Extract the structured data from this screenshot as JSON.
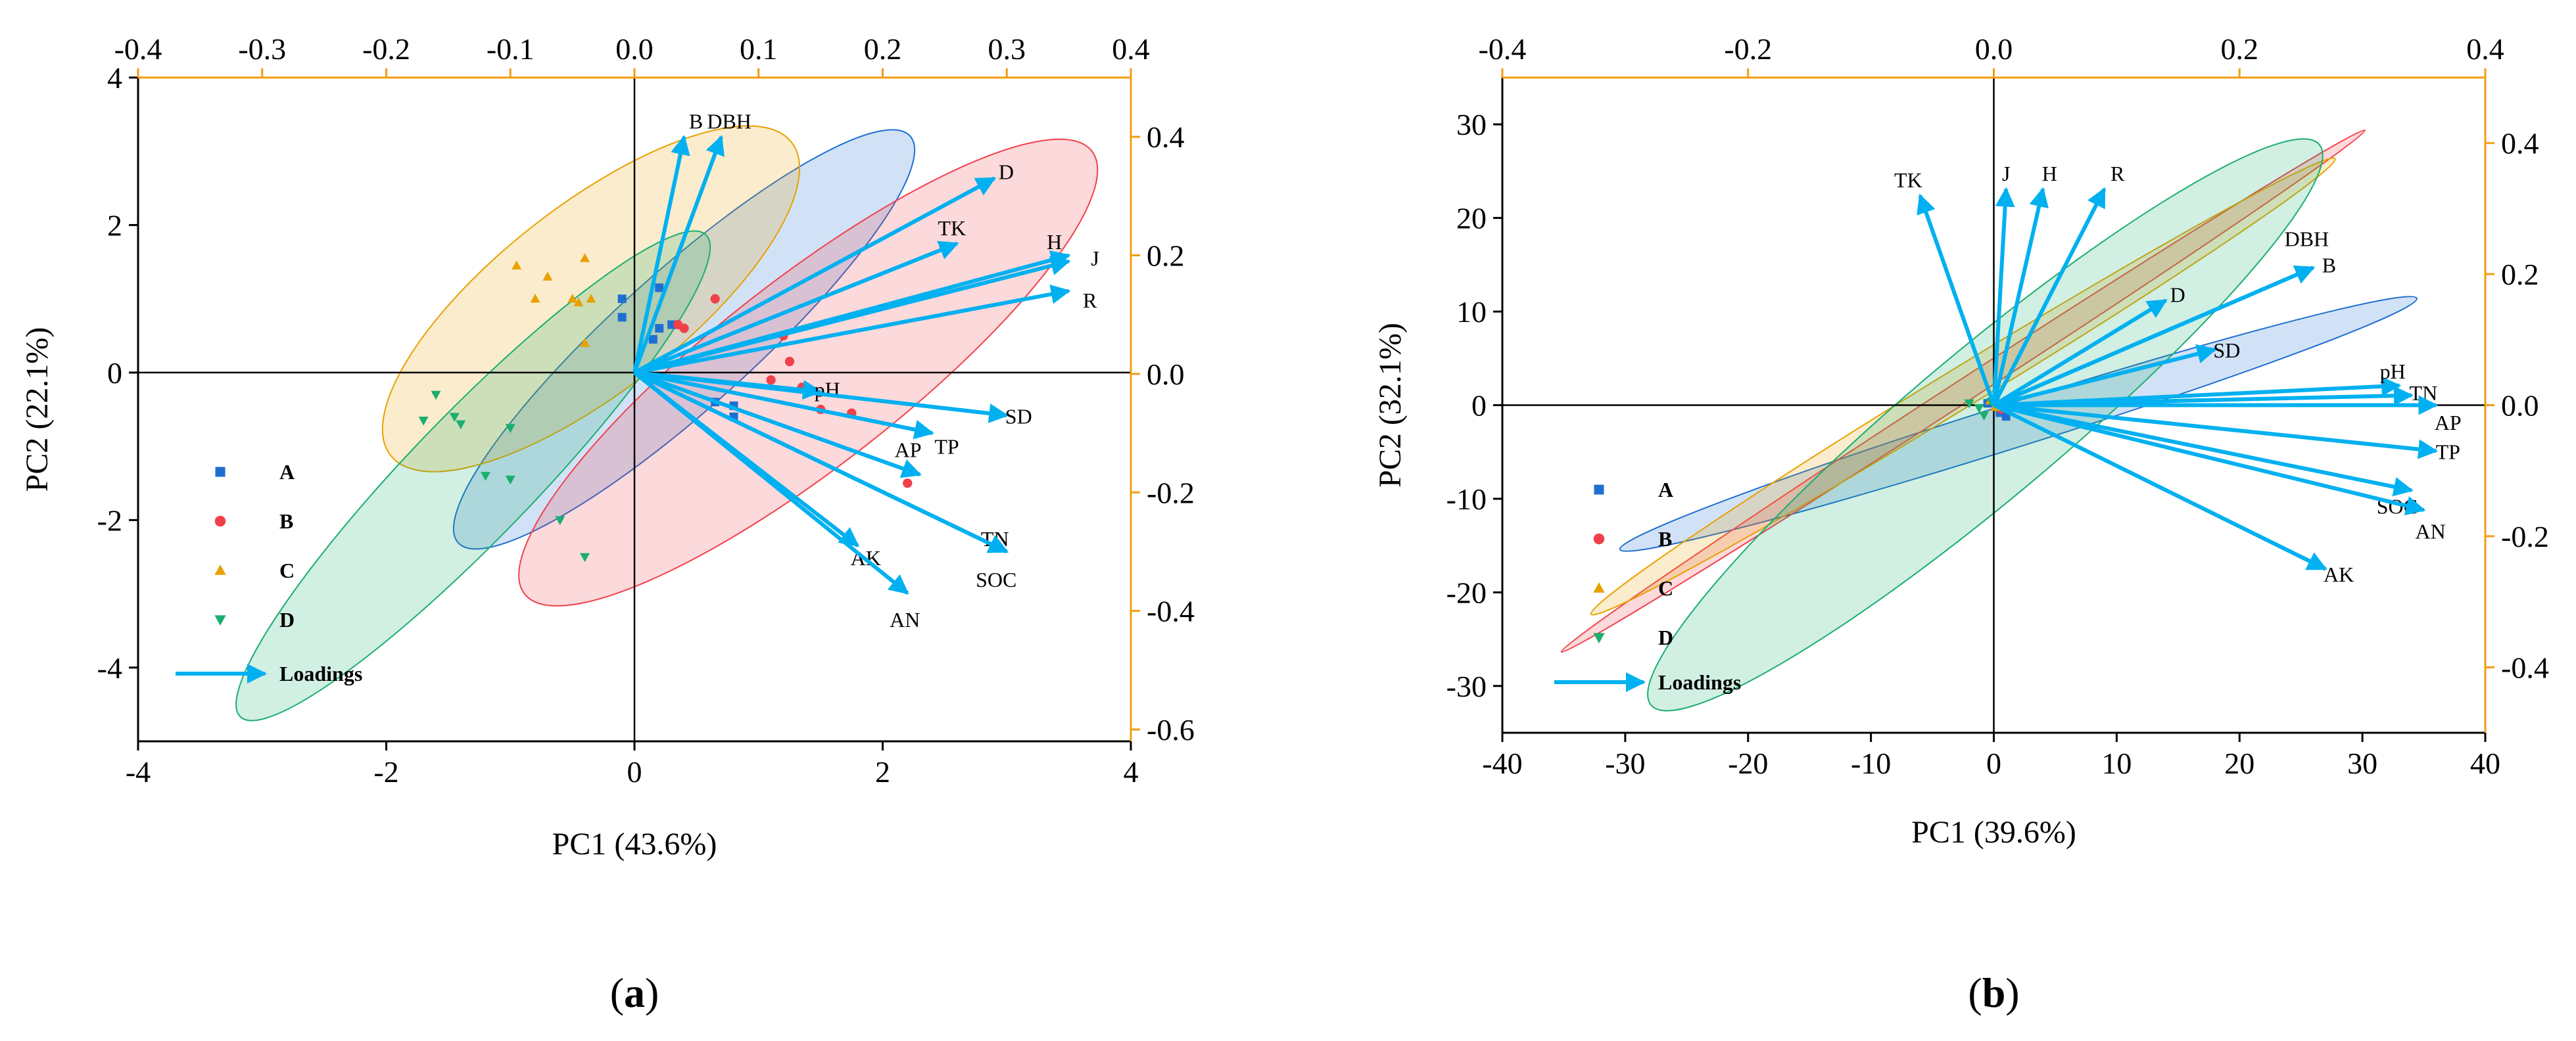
{
  "arrow_color": "#00B0F0",
  "orange_color": "#F39C12",
  "chart_data": [
    {
      "type": "scatter",
      "panel_label": "(a)",
      "title": "",
      "xlabel": "PC1 (43.6%)",
      "ylabel": "PC2 (22.1%)",
      "xlim": [
        -4,
        4
      ],
      "ylim": [
        -5,
        4
      ],
      "xticks": [
        -4,
        -2,
        0,
        2,
        4
      ],
      "yticks": [
        -4,
        -2,
        0,
        2,
        4
      ],
      "loading_xlim": [
        -0.4,
        0.4
      ],
      "loading_ylim": [
        -0.62,
        0.5
      ],
      "top_ticks": [
        -0.4,
        -0.3,
        -0.2,
        -0.1,
        0.0,
        0.1,
        0.2,
        0.3,
        0.4
      ],
      "right_ticks": [
        0.4,
        0.2,
        0.0,
        -0.2,
        -0.4,
        -0.6
      ],
      "top_tick_labels": [
        "-0.4",
        "-0.3",
        "-0.2",
        "-0.1",
        "0.0",
        "0.1",
        "0.2",
        "0.3",
        "0.4"
      ],
      "right_tick_labels": [
        "0.4",
        "0.2",
        "0.0",
        "-0.2",
        "-0.4",
        "-0.6"
      ],
      "legend": [
        "A",
        "B",
        "C",
        "D",
        "Loadings"
      ],
      "series": [
        {
          "name": "A",
          "color": "#1F6FD1",
          "marker": "square",
          "points": [
            [
              -0.1,
              1.0
            ],
            [
              -0.1,
              0.75
            ],
            [
              0.2,
              1.15
            ],
            [
              0.2,
              0.6
            ],
            [
              0.15,
              0.45
            ],
            [
              0.3,
              0.65
            ],
            [
              0.65,
              -0.4
            ],
            [
              0.8,
              -0.45
            ],
            [
              0.8,
              -0.6
            ]
          ],
          "ellipse": {
            "cx": 0.4,
            "cy": 0.45,
            "rx": 2.45,
            "ry": 0.55,
            "angle": -42
          }
        },
        {
          "name": "B",
          "color": "#F0414B",
          "marker": "circle",
          "points": [
            [
              0.65,
              1.0
            ],
            [
              0.35,
              0.65
            ],
            [
              0.4,
              0.6
            ],
            [
              1.1,
              -0.1
            ],
            [
              1.2,
              0.5
            ],
            [
              1.25,
              0.15
            ],
            [
              1.35,
              -0.2
            ],
            [
              1.5,
              -0.5
            ],
            [
              1.75,
              -0.55
            ],
            [
              2.2,
              -1.5
            ]
          ],
          "ellipse": {
            "cx": 1.4,
            "cy": 0.0,
            "rx": 2.9,
            "ry": 0.75,
            "angle": -38
          }
        },
        {
          "name": "C",
          "color": "#E8A100",
          "marker": "triangle-up",
          "points": [
            [
              -0.95,
              1.45
            ],
            [
              -0.7,
              1.3
            ],
            [
              -0.4,
              1.55
            ],
            [
              -0.8,
              1.0
            ],
            [
              -0.5,
              1.0
            ],
            [
              -0.35,
              1.0
            ],
            [
              -0.45,
              0.95
            ],
            [
              -0.4,
              0.4
            ]
          ],
          "ellipse": {
            "cx": -0.35,
            "cy": 1.0,
            "rx": 2.05,
            "ry": 0.75,
            "angle": -38
          }
        },
        {
          "name": "D",
          "color": "#1AAE6F",
          "marker": "triangle-down",
          "points": [
            [
              -1.6,
              -0.3
            ],
            [
              -1.7,
              -0.65
            ],
            [
              -1.45,
              -0.6
            ],
            [
              -1.4,
              -0.7
            ],
            [
              -1.0,
              -0.75
            ],
            [
              -1.2,
              -1.4
            ],
            [
              -1.0,
              -1.45
            ],
            [
              -0.6,
              -2.0
            ],
            [
              -0.4,
              -2.5
            ]
          ],
          "ellipse": {
            "cx": -1.3,
            "cy": -1.4,
            "rx": 2.7,
            "ry": 0.5,
            "angle": -46
          }
        }
      ],
      "loadings": [
        {
          "name": "B",
          "x": 0.04,
          "y": 0.4
        },
        {
          "name": "DBH",
          "x": 0.07,
          "y": 0.4
        },
        {
          "name": "D",
          "x": 0.29,
          "y": 0.33
        },
        {
          "name": "TK",
          "x": 0.26,
          "y": 0.22
        },
        {
          "name": "H",
          "x": 0.35,
          "y": 0.19
        },
        {
          "name": "J",
          "x": 0.35,
          "y": 0.2
        },
        {
          "name": "R",
          "x": 0.35,
          "y": 0.14
        },
        {
          "name": "pH",
          "x": 0.15,
          "y": -0.03
        },
        {
          "name": "SD",
          "x": 0.3,
          "y": -0.07
        },
        {
          "name": "TP",
          "x": 0.24,
          "y": -0.1
        },
        {
          "name": "AP",
          "x": 0.23,
          "y": -0.17
        },
        {
          "name": "TN",
          "x": 0.3,
          "y": -0.3
        },
        {
          "name": "SOC",
          "x": 0.3,
          "y": -0.3
        },
        {
          "name": "AK",
          "x": 0.18,
          "y": -0.29
        },
        {
          "name": "AN",
          "x": 0.22,
          "y": -0.37
        }
      ]
    },
    {
      "type": "scatter",
      "panel_label": "(b)",
      "title": "",
      "xlabel": "PC1 (39.6%)",
      "ylabel": "PC2 (32.1%)",
      "xlim": [
        -40,
        40
      ],
      "ylim": [
        -35,
        35
      ],
      "xticks": [
        -40,
        -30,
        -20,
        -10,
        0,
        10,
        20,
        30,
        40
      ],
      "yticks": [
        -30,
        -20,
        -10,
        0,
        10,
        20,
        30
      ],
      "loading_xlim": [
        -0.4,
        0.4
      ],
      "loading_ylim": [
        -0.5,
        0.5
      ],
      "top_ticks": [
        -0.4,
        -0.2,
        0.0,
        0.2,
        0.4
      ],
      "right_ticks": [
        0.4,
        0.2,
        0.0,
        -0.2,
        -0.4
      ],
      "top_tick_labels": [
        "-0.4",
        "-0.2",
        "0.0",
        "0.2",
        "0.4"
      ],
      "right_tick_labels": [
        "0.4",
        "0.2",
        "0.0",
        "-0.2",
        "-0.4"
      ],
      "legend": [
        "A",
        "B",
        "C",
        "D",
        "Loadings"
      ],
      "series": [
        {
          "name": "A",
          "color": "#1F6FD1",
          "marker": "square",
          "points": [
            [
              -0.5,
              0.2
            ],
            [
              0.5,
              -0.8
            ],
            [
              1.0,
              -1.2
            ]
          ],
          "ellipse": {
            "cx": 2.0,
            "cy": -2.0,
            "rx": 34,
            "ry": 1.8,
            "angle": -17.5
          }
        },
        {
          "name": "B",
          "color": "#F0414B",
          "marker": "circle",
          "points": [
            [
              0.2,
              0.3
            ],
            [
              0.6,
              -0.4
            ]
          ],
          "ellipse": {
            "cx": -2.5,
            "cy": 1.5,
            "rx": 39,
            "ry": 0.9,
            "angle": -33
          }
        },
        {
          "name": "C",
          "color": "#E8A100",
          "marker": "triangle-up",
          "points": [
            [
              -0.3,
              0.5
            ],
            [
              0.1,
              -0.2
            ]
          ],
          "ellipse": {
            "cx": -2.5,
            "cy": 2.0,
            "rx": 35.5,
            "ry": 1.6,
            "angle": -31.5
          }
        },
        {
          "name": "D",
          "color": "#1AAE6F",
          "marker": "triangle-down",
          "points": [
            [
              -2.0,
              0.2
            ],
            [
              -1.2,
              -0.3
            ],
            [
              -0.8,
              -1.1
            ],
            [
              -0.2,
              0.4
            ]
          ],
          "ellipse": {
            "cx": -0.7,
            "cy": -2.1,
            "rx": 35.5,
            "ry": 6,
            "angle": -40
          }
        }
      ],
      "loadings": [
        {
          "name": "TK",
          "x": -0.06,
          "y": 0.32
        },
        {
          "name": "J",
          "x": 0.01,
          "y": 0.33
        },
        {
          "name": "H",
          "x": 0.04,
          "y": 0.33
        },
        {
          "name": "R",
          "x": 0.09,
          "y": 0.33
        },
        {
          "name": "DBH",
          "x": 0.26,
          "y": 0.21
        },
        {
          "name": "B",
          "x": 0.26,
          "y": 0.21
        },
        {
          "name": "D",
          "x": 0.14,
          "y": 0.16
        },
        {
          "name": "SD",
          "x": 0.18,
          "y": 0.085
        },
        {
          "name": "pH",
          "x": 0.33,
          "y": 0.03
        },
        {
          "name": "TN",
          "x": 0.34,
          "y": 0.015
        },
        {
          "name": "AP",
          "x": 0.36,
          "y": 0.0
        },
        {
          "name": "TP",
          "x": 0.36,
          "y": -0.07
        },
        {
          "name": "SOC",
          "x": 0.34,
          "y": -0.13
        },
        {
          "name": "AN",
          "x": 0.35,
          "y": -0.16
        },
        {
          "name": "AK",
          "x": 0.27,
          "y": -0.25
        }
      ]
    }
  ]
}
